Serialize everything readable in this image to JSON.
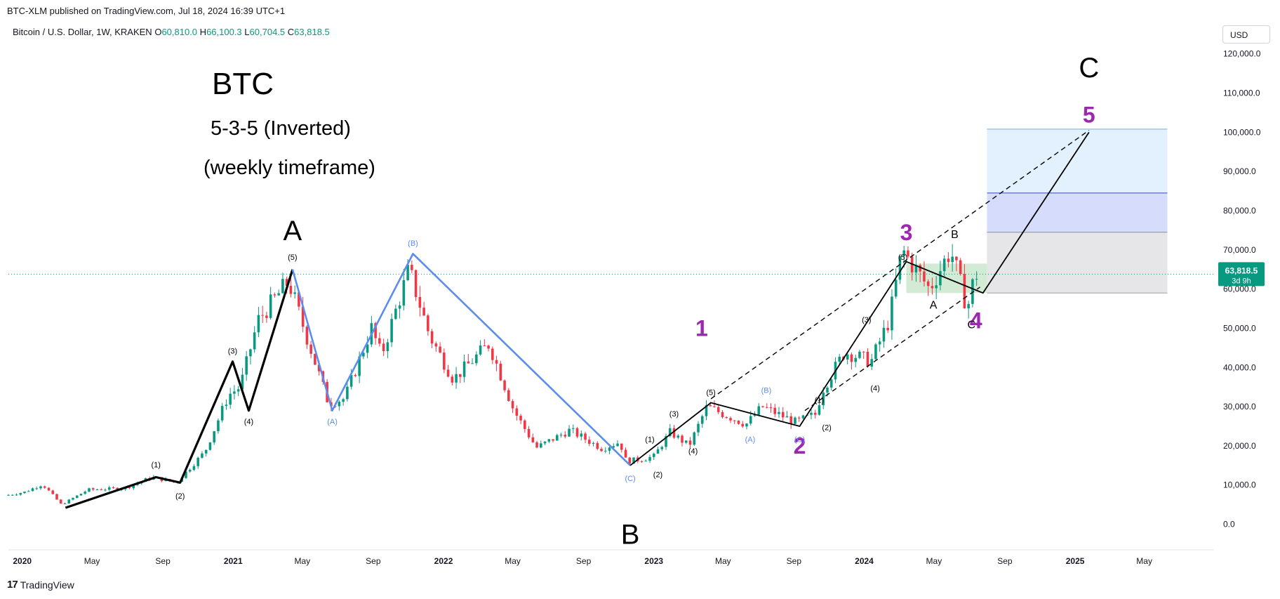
{
  "header": {
    "published": "BTC-XLM published on TradingView.com, Jul 18, 2024 16:39 UTC+1",
    "symbol": "Bitcoin / U.S. Dollar, 1W, KRAKEN",
    "o_label": "O",
    "o_value": "60,810.0",
    "h_label": "H",
    "h_value": "66,100.3",
    "l_label": "L",
    "l_value": "60,704.5",
    "c_label": "C",
    "c_value": "63,818.5",
    "currency": "USD"
  },
  "price_badge": {
    "value": "63,818.5",
    "countdown": "3d 9h"
  },
  "footer": {
    "brand": "TradingView"
  },
  "colors": {
    "up": "#089981",
    "down": "#f23645",
    "wave_blue": "#5b8def",
    "purple": "#9c27b0",
    "ink": "#000000"
  },
  "annotations": {
    "title": "BTC",
    "subtitle1": "5-3-5 (Inverted)",
    "subtitle2": "(weekly timeframe)",
    "letters": [
      {
        "text": "A",
        "x": "2021-04-14",
        "y": 72500,
        "color": "#000000",
        "size": "big"
      },
      {
        "text": "B",
        "x": "2022-11-21",
        "y": -5000,
        "color": "#000000",
        "size": "big"
      },
      {
        "text": "C",
        "x": "2025-01-25",
        "y": 114000,
        "color": "#000000",
        "size": "big"
      },
      {
        "text": "1",
        "x": "2023-03-25",
        "y": 48000,
        "color": "#9c27b0",
        "size": "mid"
      },
      {
        "text": "2",
        "x": "2023-09-11",
        "y": 18000,
        "color": "#9c27b0",
        "size": "mid"
      },
      {
        "text": "3",
        "x": "2024-03-14",
        "y": 72500,
        "color": "#9c27b0",
        "size": "mid"
      },
      {
        "text": "4",
        "x": "2024-07-13",
        "y": 50000,
        "color": "#9c27b0",
        "size": "mid"
      },
      {
        "text": "5",
        "x": "2025-01-25",
        "y": 102500,
        "color": "#9c27b0",
        "size": "mid"
      },
      {
        "text": "A",
        "x": "2024-04-30",
        "y": 55000,
        "color": "#000000",
        "size": "small"
      },
      {
        "text": "B",
        "x": "2024-06-06",
        "y": 73000,
        "color": "#000000",
        "size": "small"
      },
      {
        "text": "C",
        "x": "2024-07-05",
        "y": 50000,
        "color": "#000000",
        "size": "small"
      }
    ],
    "sublabels": [
      {
        "text": "(1)",
        "x": "2020-08-20",
        "y": 14500,
        "color": "#000000"
      },
      {
        "text": "(2)",
        "x": "2020-10-01",
        "y": 6500,
        "color": "#000000"
      },
      {
        "text": "(3)",
        "x": "2020-12-31",
        "y": 43500,
        "color": "#000000"
      },
      {
        "text": "(4)",
        "x": "2021-01-28",
        "y": 25500,
        "color": "#000000"
      },
      {
        "text": "(5)",
        "x": "2021-04-14",
        "y": 67500,
        "color": "#000000"
      },
      {
        "text": "(A)",
        "x": "2021-06-22",
        "y": 25500,
        "color": "#5b8def"
      },
      {
        "text": "(B)",
        "x": "2021-11-09",
        "y": 71000,
        "color": "#5b8def"
      },
      {
        "text": "(C)",
        "x": "2022-11-21",
        "y": 11000,
        "color": "#5b8def"
      },
      {
        "text": "(1)",
        "x": "2022-12-25",
        "y": 21000,
        "color": "#000000"
      },
      {
        "text": "(2)",
        "x": "2023-01-08",
        "y": 12000,
        "color": "#000000"
      },
      {
        "text": "(3)",
        "x": "2023-02-05",
        "y": 27500,
        "color": "#000000"
      },
      {
        "text": "(4)",
        "x": "2023-03-10",
        "y": 18000,
        "color": "#000000"
      },
      {
        "text": "(5)",
        "x": "2023-04-10",
        "y": 33000,
        "color": "#000000"
      },
      {
        "text": "(A)",
        "x": "2023-06-17",
        "y": 21000,
        "color": "#5b8def"
      },
      {
        "text": "(B)",
        "x": "2023-07-15",
        "y": 33500,
        "color": "#5b8def"
      },
      {
        "text": "(C)",
        "x": "2023-09-11",
        "y": 21000,
        "color": "#5b8def"
      },
      {
        "text": "(1)",
        "x": "2023-10-15",
        "y": 31000,
        "color": "#000000"
      },
      {
        "text": "(2)",
        "x": "2023-10-28",
        "y": 24000,
        "color": "#000000"
      },
      {
        "text": "(3)",
        "x": "2024-01-05",
        "y": 51500,
        "color": "#000000"
      },
      {
        "text": "(4)",
        "x": "2024-01-20",
        "y": 34000,
        "color": "#000000"
      },
      {
        "text": "(5)",
        "x": "2024-03-08",
        "y": 67500,
        "color": "#000000"
      }
    ]
  },
  "chart_data": {
    "type": "candlestick",
    "symbol": "Bitcoin / U.S. Dollar, 1W, KRAKEN",
    "ylim": [
      -6000,
      123000
    ],
    "y_ticks": [
      0,
      10000,
      20000,
      30000,
      40000,
      50000,
      60000,
      70000,
      80000,
      90000,
      100000,
      110000,
      120000
    ],
    "y_tick_labels": [
      "0.0",
      "10,000.0",
      "20,000.0",
      "30,000.0",
      "40,000.0",
      "50,000.0",
      "60,000.0",
      "70,000.0",
      "80,000.0",
      "90,000.0",
      "100,000.0",
      "110,000.0",
      "120,000.0"
    ],
    "xlim": [
      "2019-12-08",
      "2025-08-30"
    ],
    "x_ticks": [
      {
        "date": "2020-01-01",
        "label": "2020",
        "bold": true
      },
      {
        "date": "2020-05-01",
        "label": "May",
        "bold": false
      },
      {
        "date": "2020-09-01",
        "label": "Sep",
        "bold": false
      },
      {
        "date": "2021-01-01",
        "label": "2021",
        "bold": true
      },
      {
        "date": "2021-05-01",
        "label": "May",
        "bold": false
      },
      {
        "date": "2021-09-01",
        "label": "Sep",
        "bold": false
      },
      {
        "date": "2022-01-01",
        "label": "2022",
        "bold": true
      },
      {
        "date": "2022-05-01",
        "label": "May",
        "bold": false
      },
      {
        "date": "2022-09-01",
        "label": "Sep",
        "bold": false
      },
      {
        "date": "2023-01-01",
        "label": "2023",
        "bold": true
      },
      {
        "date": "2023-05-01",
        "label": "May",
        "bold": false
      },
      {
        "date": "2023-09-01",
        "label": "Sep",
        "bold": false
      },
      {
        "date": "2024-01-01",
        "label": "2024",
        "bold": true
      },
      {
        "date": "2024-05-01",
        "label": "May",
        "bold": false
      },
      {
        "date": "2024-09-01",
        "label": "Sep",
        "bold": false
      },
      {
        "date": "2025-01-01",
        "label": "2025",
        "bold": true
      },
      {
        "date": "2025-05-01",
        "label": "May",
        "bold": false
      }
    ],
    "last_price": 63818.5,
    "price_path": [
      [
        "2019-12-08",
        7300
      ],
      [
        "2020-01-12",
        8200
      ],
      [
        "2020-02-12",
        10200
      ],
      [
        "2020-03-16",
        5000
      ],
      [
        "2020-05-01",
        8800
      ],
      [
        "2020-07-05",
        9200
      ],
      [
        "2020-08-20",
        12000
      ],
      [
        "2020-10-01",
        10600
      ],
      [
        "2020-11-20",
        18500
      ],
      [
        "2020-12-31",
        33000
      ],
      [
        "2021-01-20",
        35000
      ],
      [
        "2021-02-20",
        52000
      ],
      [
        "2021-04-14",
        62000
      ],
      [
        "2021-06-22",
        31000
      ],
      [
        "2021-07-20",
        32000
      ],
      [
        "2021-09-05",
        50000
      ],
      [
        "2021-09-22",
        43000
      ],
      [
        "2021-11-09",
        65000
      ],
      [
        "2021-12-15",
        48000
      ],
      [
        "2022-01-25",
        37000
      ],
      [
        "2022-03-28",
        46000
      ],
      [
        "2022-05-10",
        29000
      ],
      [
        "2022-06-18",
        19500
      ],
      [
        "2022-08-15",
        24000
      ],
      [
        "2022-10-10",
        19300
      ],
      [
        "2022-11-10",
        21000
      ],
      [
        "2022-11-21",
        16000
      ],
      [
        "2022-12-25",
        16800
      ],
      [
        "2023-01-08",
        17300
      ],
      [
        "2023-02-05",
        23500
      ],
      [
        "2023-03-10",
        20000
      ],
      [
        "2023-04-10",
        30000
      ],
      [
        "2023-06-17",
        25500
      ],
      [
        "2023-07-15",
        30000
      ],
      [
        "2023-09-11",
        26000
      ],
      [
        "2023-10-15",
        28000
      ],
      [
        "2023-10-28",
        34500
      ],
      [
        "2023-12-05",
        44000
      ],
      [
        "2024-01-20",
        41500
      ],
      [
        "2024-02-20",
        52000
      ],
      [
        "2024-03-14",
        70000
      ],
      [
        "2024-04-30",
        60000
      ],
      [
        "2024-06-06",
        70000
      ],
      [
        "2024-07-05",
        55000
      ],
      [
        "2024-07-18",
        63818
      ]
    ],
    "wave_lines": [
      {
        "color": "#000000",
        "width": 3.2,
        "dash": "",
        "points": [
          [
            "2020-03-16",
            4200
          ],
          [
            "2020-08-20",
            12000
          ],
          [
            "2020-10-01",
            10600
          ],
          [
            "2020-12-31",
            41500
          ],
          [
            "2021-01-28",
            29000
          ],
          [
            "2021-04-14",
            65000
          ]
        ]
      },
      {
        "color": "#5b8def",
        "width": 2.6,
        "dash": "",
        "points": [
          [
            "2021-04-14",
            65000
          ],
          [
            "2021-06-22",
            29000
          ],
          [
            "2021-11-09",
            69000
          ],
          [
            "2022-11-21",
            15000
          ]
        ]
      },
      {
        "color": "#000000",
        "width": 1.8,
        "dash": "",
        "points": [
          [
            "2022-11-21",
            15000
          ],
          [
            "2023-04-10",
            31000
          ],
          [
            "2023-09-11",
            25000
          ],
          [
            "2024-03-14",
            67000
          ],
          [
            "2024-07-25",
            59000
          ],
          [
            "2025-01-25",
            100000
          ]
        ]
      },
      {
        "color": "#000000",
        "width": 1.4,
        "dash": "7,5",
        "points": [
          [
            "2023-04-10",
            32000
          ],
          [
            "2025-01-25",
            100500
          ]
        ]
      },
      {
        "color": "#000000",
        "width": 1.4,
        "dash": "7,5",
        "points": [
          [
            "2023-09-20",
            29000
          ],
          [
            "2024-07-20",
            60500
          ]
        ]
      }
    ],
    "target_zones": [
      {
        "x0": "2024-08-01",
        "x1": "2025-06-10",
        "y0": 84500,
        "y1": 100800,
        "fill": "#e3f0fd",
        "border": "#64b5f6"
      },
      {
        "x0": "2024-08-01",
        "x1": "2025-06-10",
        "y0": 74500,
        "y1": 84500,
        "fill": "#d6dcfb",
        "border": "#3f51b5"
      },
      {
        "x0": "2024-08-01",
        "x1": "2025-06-10",
        "y0": 59000,
        "y1": 74500,
        "fill": "#e6e6e9",
        "border": "#9e9e9e"
      }
    ],
    "consolidation_box": {
      "x0": "2024-03-14",
      "x1": "2024-08-01",
      "y0": 59000,
      "y1": 66500,
      "fill": "#c8e6c9"
    }
  }
}
